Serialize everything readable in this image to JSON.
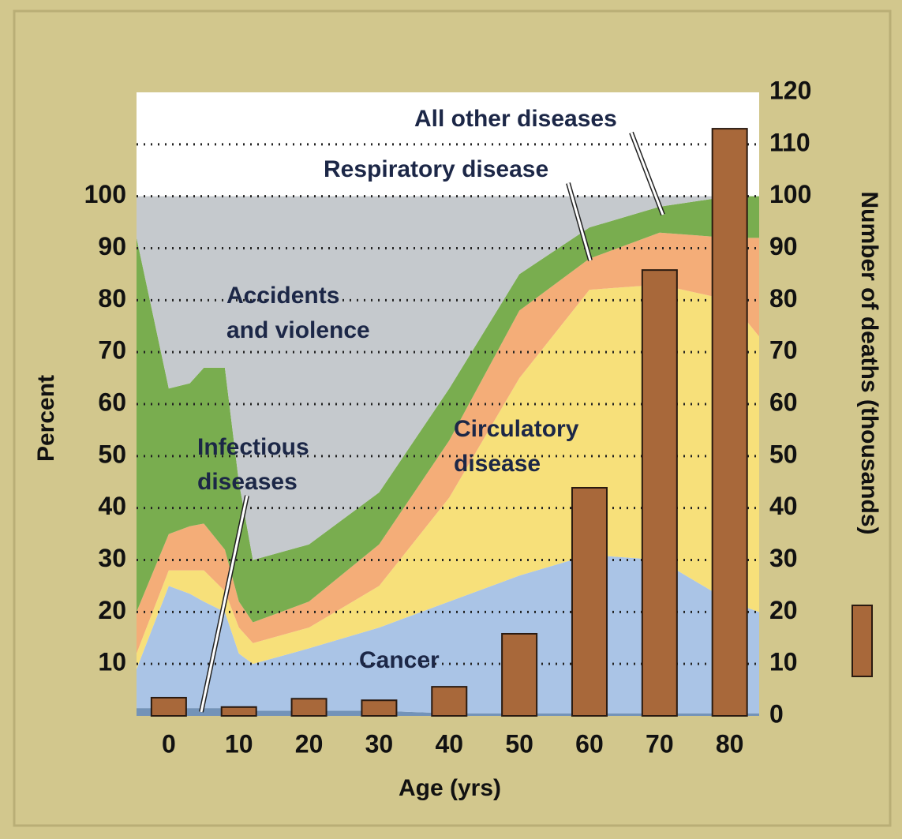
{
  "chart_data": {
    "type": "stacked-area-bar",
    "ylabel": "Percent",
    "y2label": "Number of deaths (thousands)",
    "xlabel": "Age (yrs)",
    "x": [
      -4.6,
      0,
      3,
      5,
      8,
      10,
      12,
      20,
      30,
      40,
      50,
      60,
      70,
      80,
      84.2
    ],
    "xlim": [
      -4.6,
      84.2
    ],
    "xticks": [
      0,
      10,
      20,
      30,
      40,
      50,
      60,
      70,
      80
    ],
    "ylim": [
      0,
      120
    ],
    "yticks": [
      10,
      20,
      30,
      40,
      50,
      60,
      70,
      80,
      90,
      100
    ],
    "y2lim": [
      0,
      120
    ],
    "y2ticks": [
      0,
      10,
      20,
      30,
      40,
      50,
      60,
      70,
      80,
      90,
      100,
      110,
      120
    ],
    "grid": true,
    "series": [
      {
        "name": "Infectious diseases",
        "color": "#7393b8",
        "values": [
          1.5,
          1.5,
          1.5,
          1.5,
          1.5,
          1.5,
          1,
          1,
          1,
          0.5,
          0.5,
          0.5,
          0.5,
          0.5,
          0.5
        ]
      },
      {
        "name": "Cancer",
        "color": "#aac4e6",
        "values": [
          7.5,
          23.5,
          22,
          20.5,
          18.5,
          10.5,
          9,
          12,
          16,
          21.5,
          26.5,
          30.5,
          29.5,
          21.5,
          19.5
        ]
      },
      {
        "name": "Circulatory disease",
        "color": "#f7e07a",
        "values": [
          3,
          3,
          4.5,
          6,
          4,
          5,
          4,
          4,
          8,
          20,
          38,
          51,
          53,
          58,
          53
        ]
      },
      {
        "name": "Respiratory disease",
        "color": "#f4ad78",
        "values": [
          8,
          7,
          8.5,
          9,
          8,
          5,
          4,
          5,
          8,
          11,
          13,
          6,
          10,
          12,
          19
        ]
      },
      {
        "name": "All other diseases",
        "color": "#79ad4f",
        "values": [
          72,
          28,
          27.5,
          30,
          35,
          23,
          12,
          11,
          10,
          10,
          7,
          6,
          5,
          8,
          8
        ]
      },
      {
        "name": "Accidents and violence",
        "color": "#c5c9cd",
        "values": [
          8,
          37,
          36,
          33,
          33,
          55,
          70,
          67,
          57,
          37,
          15,
          6,
          2,
          0,
          0
        ]
      },
      {
        "type": "bar",
        "axis": "y2",
        "color": "#a8683a",
        "x": [
          0,
          10,
          20,
          30,
          40,
          50,
          60,
          70,
          80
        ],
        "values": [
          3.5,
          1.7,
          3.3,
          3,
          5.6,
          15.8,
          43.9,
          85.8,
          113
        ]
      }
    ]
  }
}
